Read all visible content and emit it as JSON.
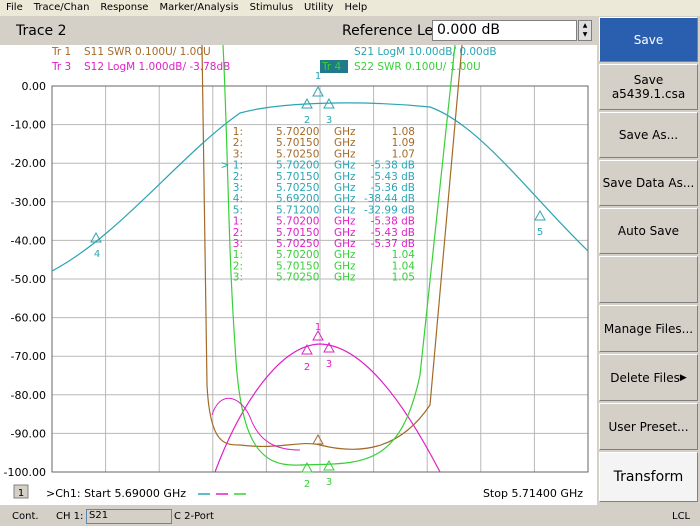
{
  "menu": [
    "File",
    "Trace/Chan",
    "Response",
    "Marker/Analysis",
    "Stimulus",
    "Utility",
    "Help"
  ],
  "header": {
    "title": "Trace 2",
    "ref_label": "Reference Level",
    "ref_value": "0.000 dB"
  },
  "legend": [
    {
      "id": "Tr 1",
      "desc": "S11 SWR 0.100U/  1.00U"
    },
    {
      "id": "Tr 2",
      "desc": "S21 LogM 10.00dB/  0.00dB"
    },
    {
      "id": "Tr 3",
      "desc": "S12 LogM 1.000dB/  -3.78dB"
    },
    {
      "id": "Tr 4",
      "desc": "S22 SWR 0.100U/  1.00U"
    }
  ],
  "yticks": [
    "0.00",
    "-10.00",
    "-20.00",
    "-30.00",
    "-40.00",
    "-50.00",
    "-60.00",
    "-70.00",
    "-80.00",
    "-90.00",
    "-100.00"
  ],
  "markers": [
    [
      "1:",
      "5.70200",
      "GHz",
      "1.08"
    ],
    [
      "2:",
      "5.70150",
      "GHz",
      "1.09"
    ],
    [
      "3:",
      "5.70250",
      "GHz",
      "1.07"
    ],
    [
      "> 1:",
      "5.70200",
      "GHz",
      "-5.38 dB"
    ],
    [
      "2:",
      "5.70150",
      "GHz",
      "-5.43 dB"
    ],
    [
      "3:",
      "5.70250",
      "GHz",
      "-5.36 dB"
    ],
    [
      "4:",
      "5.69200",
      "GHz",
      "-38.44 dB"
    ],
    [
      "5:",
      "5.71200",
      "GHz",
      "-32.99 dB"
    ],
    [
      "1:",
      "5.70200",
      "GHz",
      "-5.38 dB"
    ],
    [
      "2:",
      "5.70150",
      "GHz",
      "-5.43 dB"
    ],
    [
      "3:",
      "5.70250",
      "GHz",
      "-5.37 dB"
    ],
    [
      "1:",
      "5.70200",
      "GHz",
      "1.04"
    ],
    [
      "2:",
      "5.70150",
      "GHz",
      "1.04"
    ],
    [
      "3:",
      "5.70250",
      "GHz",
      "1.05"
    ]
  ],
  "plot_labels": [
    "1",
    "2",
    "3",
    "4",
    "5",
    "1",
    "2",
    "3",
    "2",
    "3"
  ],
  "footer": {
    "channel": "1",
    "start": ">Ch1: Start 5.69000 GHz",
    "stop": "Stop 5.71400 GHz"
  },
  "status": {
    "mode": "Cont.",
    "ch": "CH 1:",
    "param": "S21",
    "cal": "C 2-Port",
    "ref": "LCL"
  },
  "buttons": [
    "Save",
    "Save\na5439.1.csa",
    "Save As...",
    "Save Data As...",
    "Auto Save",
    "",
    "Manage Files...",
    "Delete Files",
    "User Preset...",
    "Transform"
  ]
}
